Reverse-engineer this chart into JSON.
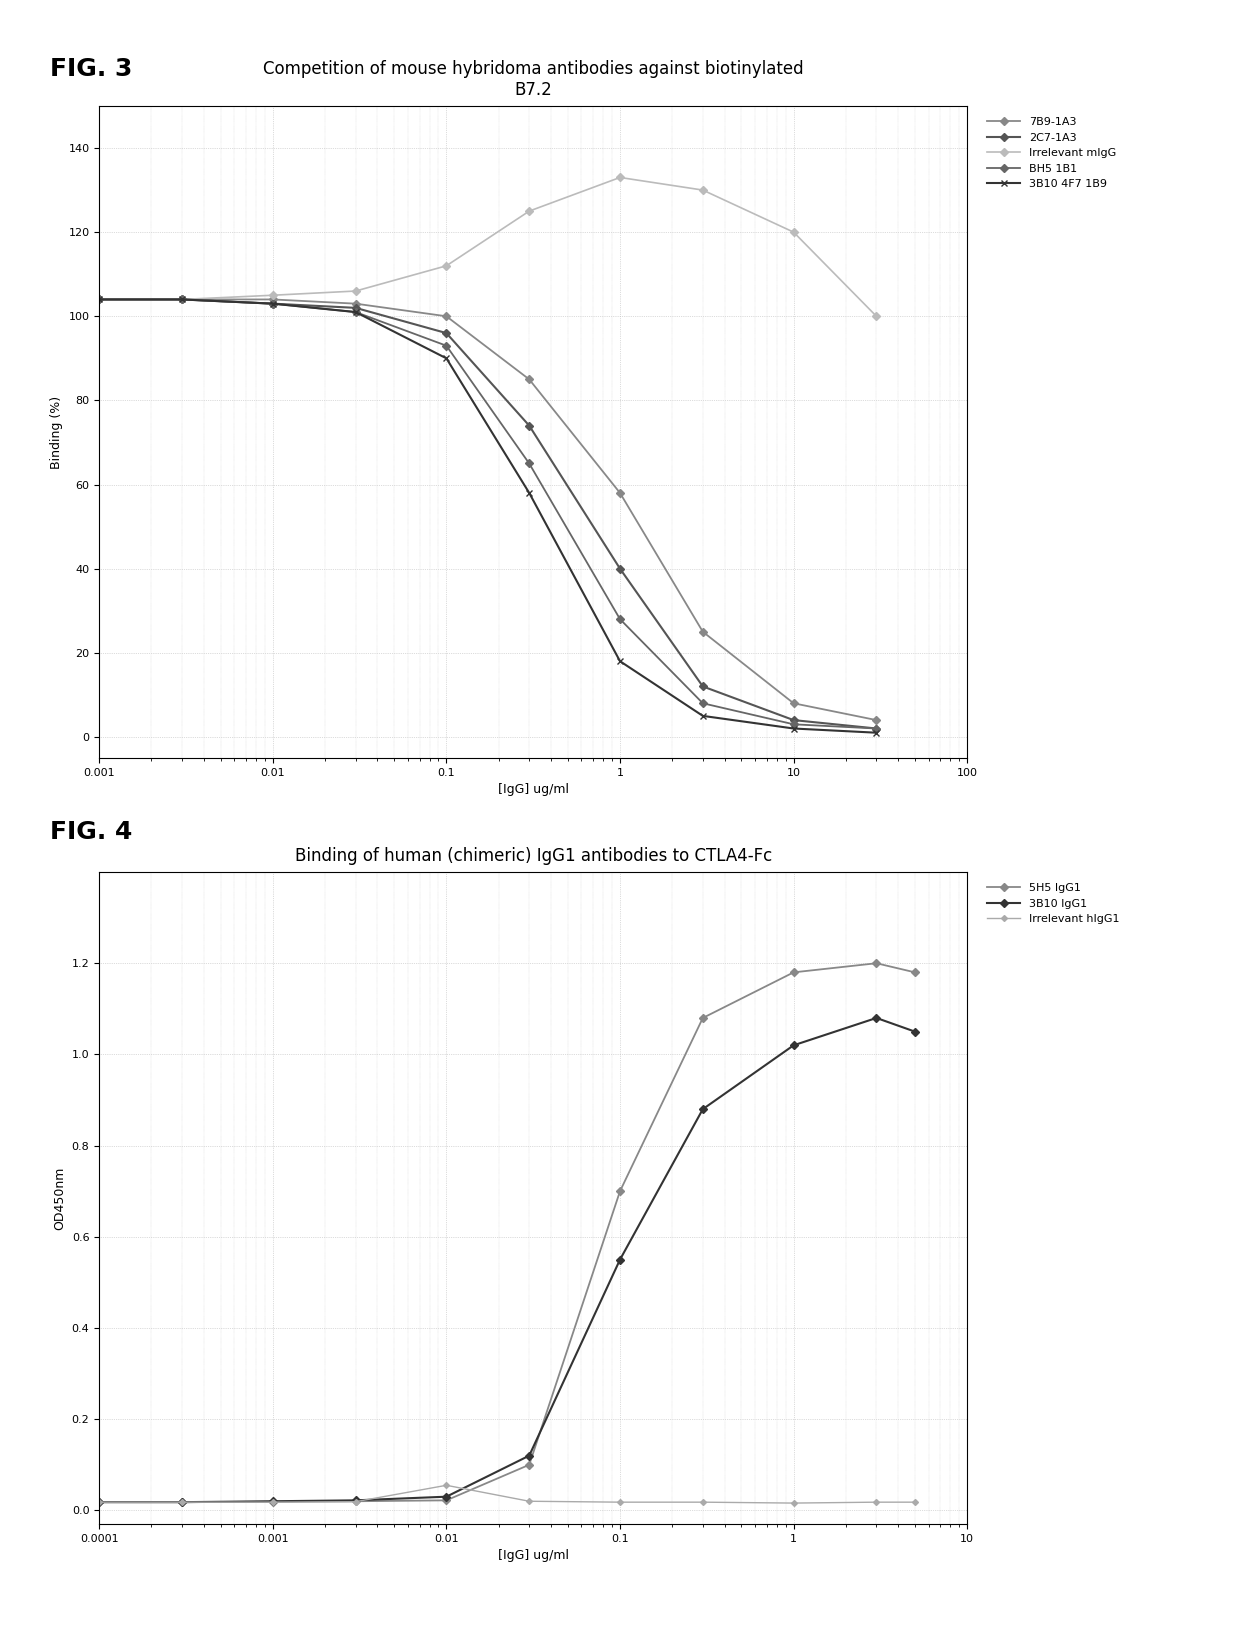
{
  "fig3": {
    "title": "Competition of mouse hybridoma antibodies against biotinylated\nB7.2",
    "xlabel": "[IgG] ug/ml",
    "ylabel": "Binding (%)",
    "xlim": [
      0.001,
      100
    ],
    "ylim": [
      -5,
      150
    ],
    "yticks": [
      0,
      20,
      40,
      60,
      80,
      100,
      120,
      140
    ],
    "series": [
      {
        "label": "7B9-1A3",
        "color": "#888888",
        "marker": "D",
        "markersize": 4,
        "linewidth": 1.3,
        "x": [
          0.001,
          0.003,
          0.01,
          0.03,
          0.1,
          0.3,
          1.0,
          3.0,
          10.0,
          30.0
        ],
        "y": [
          104,
          104,
          104,
          103,
          100,
          85,
          58,
          25,
          8,
          4
        ]
      },
      {
        "label": "2C7-1A3",
        "color": "#555555",
        "marker": "D",
        "markersize": 4,
        "linewidth": 1.5,
        "x": [
          0.001,
          0.003,
          0.01,
          0.03,
          0.1,
          0.3,
          1.0,
          3.0,
          10.0,
          30.0
        ],
        "y": [
          104,
          104,
          103,
          102,
          96,
          74,
          40,
          12,
          4,
          2
        ]
      },
      {
        "label": "Irrelevant mIgG",
        "color": "#bbbbbb",
        "marker": "D",
        "markersize": 4,
        "linewidth": 1.2,
        "x": [
          0.001,
          0.003,
          0.01,
          0.03,
          0.1,
          0.3,
          1.0,
          3.0,
          10.0,
          30.0
        ],
        "y": [
          104,
          104,
          105,
          106,
          112,
          125,
          133,
          130,
          120,
          100
        ]
      },
      {
        "label": "BH5 1B1",
        "color": "#666666",
        "marker": "D",
        "markersize": 4,
        "linewidth": 1.3,
        "x": [
          0.001,
          0.003,
          0.01,
          0.03,
          0.1,
          0.3,
          1.0,
          3.0,
          10.0,
          30.0
        ],
        "y": [
          104,
          104,
          103,
          101,
          93,
          65,
          28,
          8,
          3,
          2
        ]
      },
      {
        "label": "3B10 4F7 1B9",
        "color": "#333333",
        "marker": "x",
        "markersize": 5,
        "linewidth": 1.5,
        "x": [
          0.001,
          0.003,
          0.01,
          0.03,
          0.1,
          0.3,
          1.0,
          3.0,
          10.0,
          30.0
        ],
        "y": [
          104,
          104,
          103,
          101,
          90,
          58,
          18,
          5,
          2,
          1
        ]
      }
    ]
  },
  "fig4": {
    "title": "Binding of human (chimeric) IgG1 antibodies to CTLA4-Fc",
    "xlabel": "[IgG] ug/ml",
    "ylabel": "OD450nm",
    "xlim": [
      0.0001,
      10
    ],
    "ylim": [
      -0.03,
      1.4
    ],
    "yticks": [
      0.0,
      0.2,
      0.4,
      0.6,
      0.8,
      1.0,
      1.2
    ],
    "series": [
      {
        "label": "5H5 IgG1",
        "color": "#888888",
        "marker": "D",
        "markersize": 4,
        "linewidth": 1.3,
        "x": [
          0.0001,
          0.0003,
          0.001,
          0.003,
          0.01,
          0.03,
          0.1,
          0.3,
          1.0,
          3.0,
          5.0
        ],
        "y": [
          0.018,
          0.018,
          0.019,
          0.02,
          0.022,
          0.1,
          0.7,
          1.08,
          1.18,
          1.2,
          1.18
        ]
      },
      {
        "label": "3B10 IgG1",
        "color": "#333333",
        "marker": "D",
        "markersize": 4,
        "linewidth": 1.5,
        "x": [
          0.0001,
          0.0003,
          0.001,
          0.003,
          0.01,
          0.03,
          0.1,
          0.3,
          1.0,
          3.0,
          5.0
        ],
        "y": [
          0.018,
          0.018,
          0.02,
          0.022,
          0.03,
          0.12,
          0.55,
          0.88,
          1.02,
          1.08,
          1.05
        ]
      },
      {
        "label": "Irrelevant hIgG1",
        "color": "#aaaaaa",
        "marker": "D",
        "markersize": 3,
        "linewidth": 1.0,
        "x": [
          0.0001,
          0.0003,
          0.001,
          0.003,
          0.01,
          0.03,
          0.1,
          0.3,
          1.0,
          3.0,
          5.0
        ],
        "y": [
          0.018,
          0.018,
          0.018,
          0.019,
          0.055,
          0.02,
          0.018,
          0.018,
          0.016,
          0.018,
          0.018
        ]
      }
    ]
  },
  "background_color": "#ffffff",
  "grid_color": "#bbbbbb",
  "title_fontsize": 12,
  "label_fontsize": 9,
  "tick_fontsize": 8,
  "legend_fontsize": 8,
  "fig3_label": "FIG. 3",
  "fig4_label": "FIG. 4"
}
